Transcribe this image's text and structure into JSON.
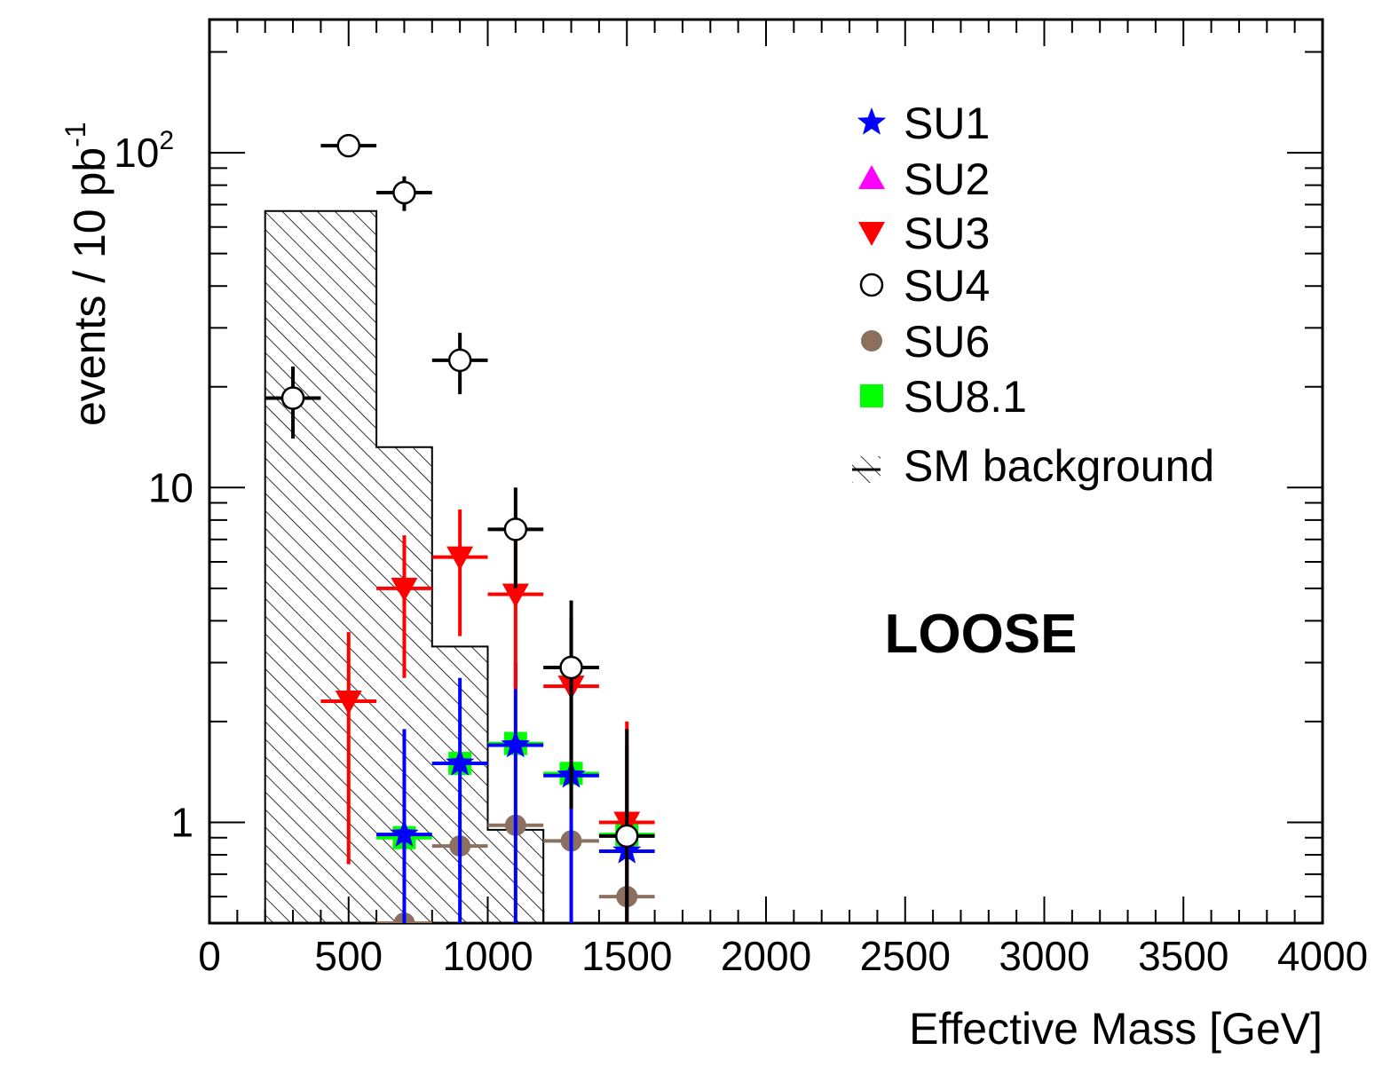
{
  "chart_data": {
    "type": "scatter",
    "xlabel": "Effective Mass [GeV]",
    "ylabel": "events / 10 pb",
    "ylabel_sup": "-1",
    "xlim": [
      0,
      4000
    ],
    "ylim": [
      0.5,
      250
    ],
    "yscale": "log",
    "x_ticks": [
      "0",
      "500",
      "1000",
      "1500",
      "2000",
      "2500",
      "3000",
      "3500",
      "4000"
    ],
    "y_ticks": [
      {
        "base": "10",
        "exp": "2",
        "value": 100
      },
      {
        "base": "10",
        "exp": "",
        "value": 10
      },
      {
        "base": "1",
        "exp": "",
        "value": 1
      }
    ],
    "annotation": "LOOSE",
    "legend_position": "top-right",
    "background": {
      "name": "SM background",
      "bins": [
        [
          200,
          600,
          67
        ],
        [
          600,
          800,
          13.2
        ],
        [
          800,
          1000,
          3.35
        ],
        [
          1000,
          1200,
          0.95
        ]
      ]
    },
    "series": [
      {
        "name": "SU1",
        "color": "#0000ff",
        "marker": "star",
        "points": [
          [
            700,
            0.92,
            0.5,
            1.9
          ],
          [
            900,
            1.5,
            0.5,
            2.7
          ],
          [
            1100,
            1.7,
            0.5,
            3.0
          ],
          [
            1300,
            1.38,
            0.5,
            2.4
          ],
          [
            1500,
            0.82,
            0.5,
            1.7
          ]
        ]
      },
      {
        "name": "SU2",
        "color": "#ff00ff",
        "marker": "triangle-up",
        "points": []
      },
      {
        "name": "SU3",
        "color": "#ff0000",
        "marker": "triangle-down",
        "points": [
          [
            500,
            2.3,
            0.75,
            3.7
          ],
          [
            700,
            5.0,
            2.7,
            7.2
          ],
          [
            900,
            6.2,
            3.6,
            8.6
          ],
          [
            1100,
            4.8,
            2.5,
            7.0
          ],
          [
            1300,
            2.55,
            1.1,
            4.0
          ],
          [
            1500,
            1.0,
            0.5,
            2.0
          ]
        ]
      },
      {
        "name": "SU4",
        "color": "#000000",
        "marker": "circle-open",
        "points": [
          [
            300,
            18.5,
            14,
            23
          ],
          [
            500,
            105,
            97,
            113
          ],
          [
            700,
            76,
            67,
            85
          ],
          [
            900,
            24,
            19,
            29
          ],
          [
            1100,
            7.5,
            5.0,
            10
          ],
          [
            1300,
            2.9,
            1.1,
            4.6
          ],
          [
            1500,
            0.91,
            0.5,
            1.9
          ]
        ]
      },
      {
        "name": "SU6",
        "color": "#8b7060",
        "marker": "circle-filled",
        "points": [
          [
            700,
            0.5,
            0.5,
            0.5
          ],
          [
            900,
            0.85,
            0.85,
            0.85
          ],
          [
            1100,
            0.98,
            0.98,
            0.98
          ],
          [
            1300,
            0.88,
            0.88,
            0.88
          ],
          [
            1500,
            0.6,
            0.6,
            0.6
          ]
        ]
      },
      {
        "name": "SU8.1",
        "color": "#00ff00",
        "marker": "square",
        "points": [
          [
            700,
            0.9,
            0.9,
            0.9
          ],
          [
            900,
            1.5,
            1.5,
            1.5
          ],
          [
            1100,
            1.72,
            1.72,
            1.72
          ],
          [
            1300,
            1.4,
            1.4,
            1.4
          ],
          [
            1500,
            0.92,
            0.92,
            0.92
          ]
        ]
      }
    ]
  }
}
